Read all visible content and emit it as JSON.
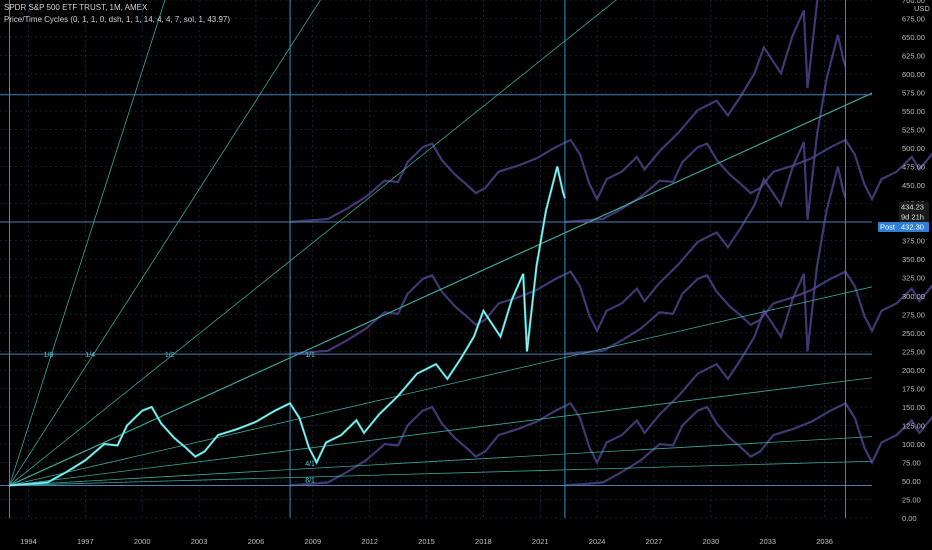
{
  "header": {
    "title": "SPDR S&P 500 ETF TRUST, 1M, AMEX",
    "indicator": "Price/Time Cycles (0, 1, 1, 0, dsh, 1, 1, 14, 4, 4, 7, sol, 1, 43.97)"
  },
  "price_scale": {
    "currency": "USD",
    "tags": [
      {
        "name": "last-price",
        "value": "434.23",
        "color": "#1a1a1a",
        "text": "#e0e0e0"
      },
      {
        "name": "countdown",
        "value": "9d 21h",
        "color": "#1a1a1a",
        "text": "#e0e0e0"
      },
      {
        "name": "post-label",
        "value": "Post",
        "color": "#2f7fd6",
        "text": "#ffffff"
      },
      {
        "name": "post-price",
        "value": "432.30",
        "color": "#2f7fd6",
        "text": "#ffffff"
      }
    ]
  },
  "colors": {
    "background": "#000000",
    "grid": "#1f3f5a",
    "price": "#40d6d6",
    "price_light": "#ffffff",
    "ghost": "#5a4a9a",
    "fan": "#3fb8a8",
    "hline": "#4a7fb0",
    "vline": "#3a8fc0"
  },
  "chart_data": {
    "type": "line",
    "title": "SPDR S&P 500 ETF TRUST, 1M, AMEX",
    "ylim": [
      0,
      700
    ],
    "xlim": [
      1992.5,
      2038.5
    ],
    "y_ticks": [
      "0.00",
      "25.00",
      "50.00",
      "75.00",
      "100.00",
      "125.00",
      "150.00",
      "175.00",
      "200.00",
      "225.00",
      "250.00",
      "275.00",
      "300.00",
      "325.00",
      "350.00",
      "375.00",
      "400.00",
      "425.00",
      "450.00",
      "475.00",
      "500.00",
      "525.00",
      "550.00",
      "575.00",
      "600.00",
      "625.00",
      "650.00",
      "675.00",
      "700.00"
    ],
    "x_ticks": [
      {
        "x": 1994,
        "label": "1994"
      },
      {
        "x": 1997,
        "label": "1997"
      },
      {
        "x": 2000,
        "label": "2000"
      },
      {
        "x": 2003,
        "label": "2003"
      },
      {
        "x": 2006,
        "label": "2006"
      },
      {
        "x": 2009,
        "label": "2009"
      },
      {
        "x": 2012,
        "label": "2012"
      },
      {
        "x": 2015,
        "label": "2015"
      },
      {
        "x": 2018,
        "label": "2018"
      },
      {
        "x": 2021,
        "label": "2021"
      },
      {
        "x": 2024,
        "label": "2024"
      },
      {
        "x": 2027,
        "label": "2027"
      },
      {
        "x": 2030,
        "label": "2030"
      },
      {
        "x": 2033,
        "label": "2033"
      },
      {
        "x": 2036,
        "label": "2036"
      }
    ],
    "series": [
      {
        "values": [
          [
            1993.0,
            44
          ],
          [
            1994.0,
            46
          ],
          [
            1995.0,
            48
          ],
          [
            1996.0,
            62
          ],
          [
            1997.0,
            78
          ],
          [
            1998.0,
            100
          ],
          [
            1998.7,
            98
          ],
          [
            1999.2,
            125
          ],
          [
            2000.0,
            145
          ],
          [
            2000.5,
            150
          ],
          [
            2001.0,
            128
          ],
          [
            2001.7,
            108
          ],
          [
            2002.3,
            95
          ],
          [
            2002.8,
            83
          ],
          [
            2003.3,
            90
          ],
          [
            2004.0,
            112
          ],
          [
            2005.0,
            120
          ],
          [
            2006.0,
            130
          ],
          [
            2007.0,
            145
          ],
          [
            2007.8,
            155
          ],
          [
            2008.3,
            135
          ],
          [
            2008.8,
            95
          ],
          [
            2009.2,
            75
          ],
          [
            2009.7,
            102
          ],
          [
            2010.5,
            112
          ],
          [
            2011.3,
            132
          ],
          [
            2011.7,
            115
          ],
          [
            2012.5,
            140
          ],
          [
            2013.5,
            165
          ],
          [
            2014.5,
            195
          ],
          [
            2015.5,
            208
          ],
          [
            2016.1,
            188
          ],
          [
            2016.8,
            215
          ],
          [
            2017.5,
            245
          ],
          [
            2018.0,
            280
          ],
          [
            2018.9,
            245
          ],
          [
            2019.5,
            295
          ],
          [
            2020.1,
            330
          ],
          [
            2020.3,
            225
          ],
          [
            2020.8,
            340
          ],
          [
            2021.3,
            415
          ],
          [
            2021.9,
            475
          ],
          [
            2022.2,
            440
          ],
          [
            2022.3,
            432
          ]
        ]
      }
    ],
    "fan_ratios": [
      "1/8",
      "1/4",
      "1/2",
      "1/1",
      "4/1",
      "8/1"
    ],
    "fan_angles": [
      {
        "label": "1/8",
        "slope": 80.0
      },
      {
        "label": "1/4",
        "slope": 40.0
      },
      {
        "label": "1/2",
        "slope": 20.5
      },
      {
        "label": "1/1",
        "slope": 11.65
      },
      {
        "label": "2/1",
        "slope": 5.9
      },
      {
        "label": "3/1",
        "slope": 3.2
      },
      {
        "label": "4/1",
        "slope": 1.45
      },
      {
        "label": "8/1",
        "slope": 0.72
      }
    ],
    "horizontal_levels": [
      43.97,
      221.5,
      400.0,
      572.0
    ],
    "vertical_cycles": [
      1993.0,
      2007.8,
      2022.3,
      2037.1
    ]
  }
}
